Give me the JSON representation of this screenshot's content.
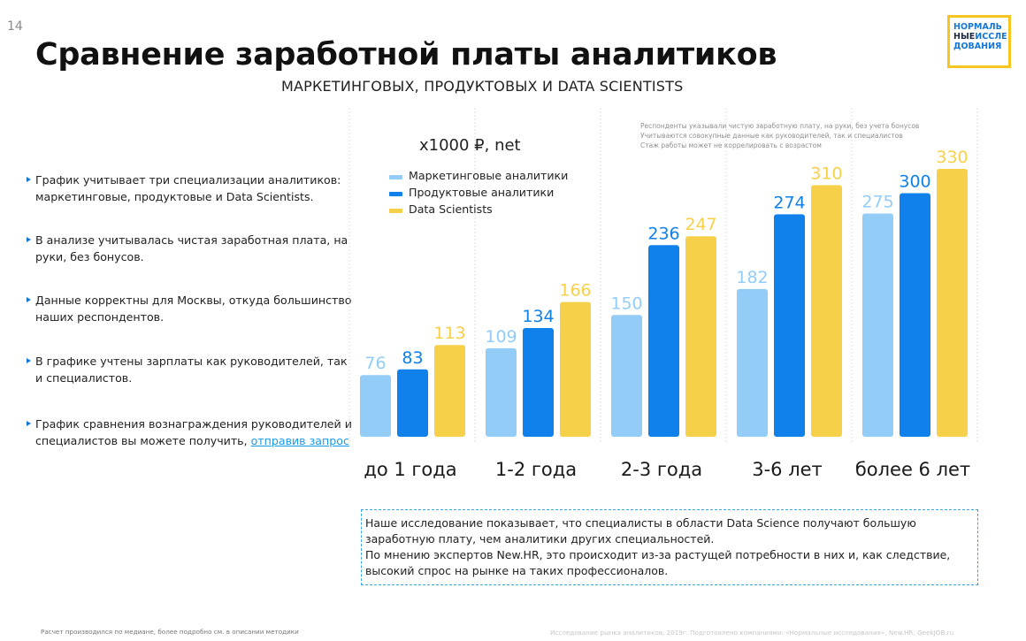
{
  "page_number": "14",
  "title": "Сравнение заработной платы аналитиков",
  "subtitle": "МАРКЕТИНГОВЫХ, ПРОДУКТОВЫХ И DATA SCIENTISTS",
  "logo": {
    "line1": "НОРМАЛЬ",
    "line2a": "НЫЕ",
    "line2b": "ИССЛЕ",
    "line3": "ДОВАНИЯ"
  },
  "bullets": [
    {
      "text": "График учитывает три специализации аналитиков: маркетинговые, продуктовые и Data Scientists."
    },
    {
      "text": "В анализе учитывалась чистая заработная плата, на руки, без бонусов."
    },
    {
      "text": "Данные корректны для Москвы, откуда большинство наших респондентов."
    },
    {
      "text": "В графике учтены зарплаты как руководителей, так и специалистов."
    },
    {
      "text": "График сравнения вознаграждения руководителей и специалистов вы можете получить, ",
      "link": "отправив запрос"
    }
  ],
  "notes": [
    "Респонденты указывали чистую заработную плату, на руки, без учета бонусов",
    "Учитываются совокупные данные как руководителей, так и специалистов",
    "Стаж работы может не коррелировать с возрастом"
  ],
  "callout": {
    "line1": "Наше исследование показывает, что специалисты в области Data Science получают большую",
    "line2": "заработную плату, чем аналитики других специальностей.",
    "line3": "По мнению экспертов New.HR, это происходит из-за растущей потребности в них и, как следствие,",
    "line4": "высокий спрос на рынке на таких профессионалов."
  },
  "footnote_left": "Расчет производился по медиане, более подробно см. в описании методики",
  "footnote_right": "Исследование рынка аналитиков, 2019г. Подготовлено компаниями: «Нормальные исследования», New.HR, GeekJOB.ru",
  "colors": {
    "marketing": "#93cdf7",
    "product": "#1080ea",
    "ds": "#f7d04a",
    "link": "#1a9ae8",
    "accent": "#1577d8"
  },
  "chart_data": {
    "type": "bar",
    "unit_label": "x1000 ₽, net",
    "categories": [
      "до 1 года",
      "1-2 года",
      "2-3 года",
      "3-6 лет",
      "более 6 лет"
    ],
    "series": [
      {
        "name": "Маркетинговые аналитики",
        "color": "#93cdf7",
        "values": [
          76,
          109,
          150,
          182,
          275
        ]
      },
      {
        "name": "Продуктовые аналитики",
        "color": "#1080ea",
        "values": [
          83,
          134,
          236,
          274,
          300
        ]
      },
      {
        "name": "Data Scientists",
        "color": "#f7d04a",
        "values": [
          113,
          166,
          247,
          310,
          330
        ]
      }
    ],
    "ylim": [
      0,
      330
    ],
    "legend": "top-left",
    "grid": "dotted vertical separators"
  }
}
